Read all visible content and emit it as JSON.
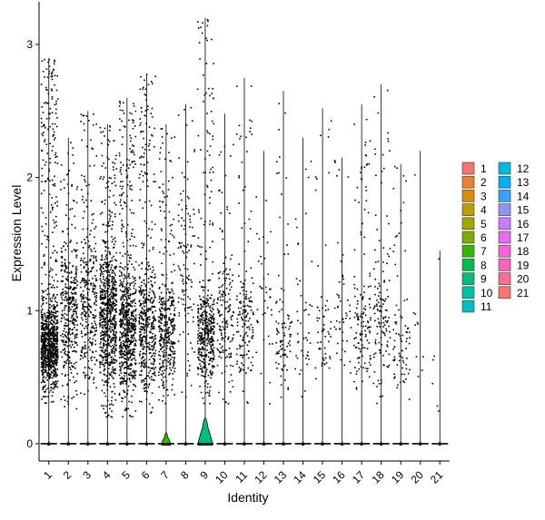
{
  "chart_data": {
    "type": "violin",
    "xlabel": "Identity",
    "ylabel": "Expression Level",
    "ylim": [
      -0.13,
      3.32
    ],
    "yticks": [
      0,
      1,
      2,
      3
    ],
    "grid": false,
    "legend_position": "right",
    "categories": [
      "1",
      "2",
      "3",
      "4",
      "5",
      "6",
      "7",
      "8",
      "9",
      "10",
      "11",
      "12",
      "13",
      "14",
      "15",
      "16",
      "17",
      "18",
      "19",
      "20",
      "21"
    ],
    "colors": [
      "#F8766D",
      "#EA8331",
      "#D89000",
      "#C09B00",
      "#A3A500",
      "#7CAE00",
      "#39B600",
      "#00BB4E",
      "#00BF7D",
      "#00C1A3",
      "#00BFC4",
      "#00BAE0",
      "#00B0F6",
      "#35A2FF",
      "#9590FF",
      "#C77CFF",
      "#E76BF3",
      "#FA62DB",
      "#FF62BC",
      "#FF6C91",
      "#F8766D"
    ],
    "max_values": [
      2.9,
      2.3,
      2.5,
      2.4,
      2.6,
      2.78,
      2.4,
      2.55,
      3.2,
      2.48,
      2.75,
      2.2,
      2.65,
      2.3,
      2.52,
      2.15,
      2.55,
      2.7,
      2.1,
      2.2,
      1.45
    ],
    "point_counts": [
      950,
      380,
      320,
      750,
      700,
      480,
      380,
      120,
      450,
      170,
      160,
      40,
      90,
      45,
      60,
      50,
      140,
      130,
      80,
      10,
      6
    ],
    "core_ranges": [
      [
        0.3,
        1.2
      ],
      [
        0.25,
        1.8
      ],
      [
        0.35,
        1.8
      ],
      [
        0.2,
        1.7
      ],
      [
        0.2,
        1.5
      ],
      [
        0.2,
        1.6
      ],
      [
        0.3,
        1.4
      ],
      [
        0.3,
        2.3
      ],
      [
        0.3,
        1.3
      ],
      [
        0.3,
        1.6
      ],
      [
        0.3,
        1.5
      ],
      [
        0.3,
        2.0
      ],
      [
        0.3,
        1.3
      ],
      [
        0.3,
        1.3
      ],
      [
        0.3,
        1.3
      ],
      [
        0.3,
        1.6
      ],
      [
        0.3,
        1.4
      ],
      [
        0.3,
        1.5
      ],
      [
        0.3,
        1.1
      ],
      [
        0.4,
        1.1
      ],
      [
        0.15,
        1.2
      ]
    ],
    "violin_peak_heights": [
      0.01,
      0.01,
      0.01,
      0.01,
      0.01,
      0.01,
      0.1,
      0.01,
      0.25,
      0.01,
      0.01,
      0.01,
      0.01,
      0.01,
      0.01,
      0.01,
      0.01,
      0.01,
      0.01,
      0.01,
      0.01
    ],
    "violin_widths": [
      0.1,
      0.1,
      0.1,
      0.1,
      0.1,
      0.1,
      0.45,
      0.1,
      0.75,
      0.1,
      0.1,
      0.1,
      0.1,
      0.1,
      0.1,
      0.1,
      0.1,
      0.1,
      0.1,
      0.1,
      0.1
    ],
    "legend": {
      "columns": [
        [
          "1",
          "2",
          "3",
          "4",
          "5",
          "6",
          "7",
          "8",
          "9",
          "10",
          "11"
        ],
        [
          "12",
          "13",
          "14",
          "15",
          "16",
          "17",
          "18",
          "19",
          "20",
          "21"
        ]
      ]
    }
  }
}
